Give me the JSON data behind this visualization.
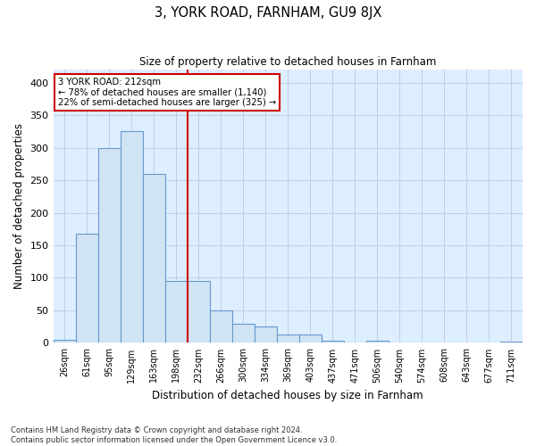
{
  "title": "3, YORK ROAD, FARNHAM, GU9 8JX",
  "subtitle": "Size of property relative to detached houses in Farnham",
  "xlabel": "Distribution of detached houses by size in Farnham",
  "ylabel": "Number of detached properties",
  "bin_labels": [
    "26sqm",
    "61sqm",
    "95sqm",
    "129sqm",
    "163sqm",
    "198sqm",
    "232sqm",
    "266sqm",
    "300sqm",
    "334sqm",
    "369sqm",
    "403sqm",
    "437sqm",
    "471sqm",
    "506sqm",
    "540sqm",
    "574sqm",
    "608sqm",
    "643sqm",
    "677sqm",
    "711sqm"
  ],
  "bar_heights": [
    5,
    168,
    300,
    325,
    260,
    95,
    95,
    50,
    30,
    25,
    13,
    13,
    3,
    0,
    3,
    0,
    0,
    1,
    0,
    1,
    2
  ],
  "bar_color": "#d0e4f5",
  "bar_edge_color": "#6699cc",
  "property_line_x": 5.5,
  "annotation_line1": "3 YORK ROAD: 212sqm",
  "annotation_line2": "← 78% of detached houses are smaller (1,140)",
  "annotation_line3": "22% of semi-detached houses are larger (325) →",
  "annotation_box_facecolor": "#ffffff",
  "annotation_box_edgecolor": "#cc0000",
  "grid_color": "#c0d0e0",
  "plot_bg_color": "#ddeeff",
  "footer_line1": "Contains HM Land Registry data © Crown copyright and database right 2024.",
  "footer_line2": "Contains public sector information licensed under the Open Government Licence v3.0.",
  "ylim": [
    0,
    420
  ],
  "yticks": [
    0,
    50,
    100,
    150,
    200,
    250,
    300,
    350,
    400
  ]
}
